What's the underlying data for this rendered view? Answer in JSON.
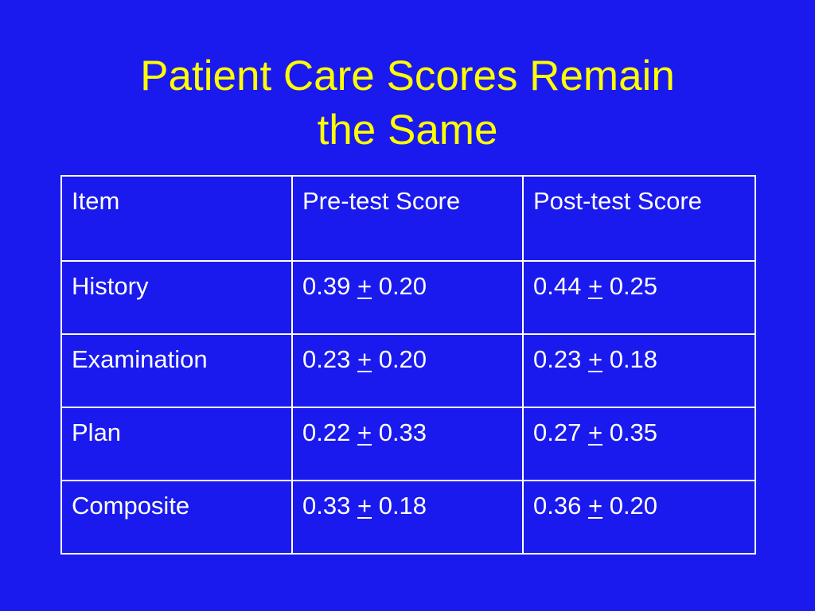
{
  "slide": {
    "title_line1": "Patient Care Scores Remain",
    "title_line2": "the Same"
  },
  "table": {
    "headers": [
      "Item",
      "Pre-test Score",
      "Post-test Score"
    ],
    "rows": [
      {
        "item": "History",
        "pre": {
          "mean": "0.39",
          "sign": "+",
          "sd": "0.20"
        },
        "post": {
          "mean": "0.44",
          "sign": "+",
          "sd": "0.25"
        }
      },
      {
        "item": "Examination",
        "pre": {
          "mean": "0.23",
          "sign": "+",
          "sd": "0.20"
        },
        "post": {
          "mean": "0.23",
          "sign": "+",
          "sd": "0.18"
        }
      },
      {
        "item": "Plan",
        "pre": {
          "mean": "0.22",
          "sign": "+",
          "sd": "0.33"
        },
        "post": {
          "mean": "0.27",
          "sign": "+",
          "sd": "0.35"
        }
      },
      {
        "item": "Composite",
        "pre": {
          "mean": "0.33",
          "sign": "+",
          "sd": "0.18"
        },
        "post": {
          "mean": "0.36",
          "sign": "+",
          "sd": "0.20"
        }
      }
    ]
  },
  "colors": {
    "background": "#1a1aee",
    "title": "#ffff00",
    "text": "#ffffff"
  }
}
